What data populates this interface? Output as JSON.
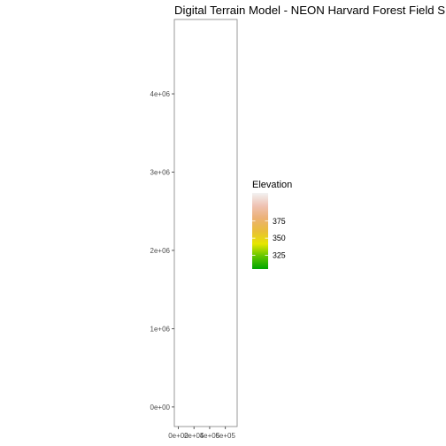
{
  "chart_data": {
    "type": "heatmap",
    "title": "Digital Terrain Model - NEON Harvard Forest Field Site",
    "xlabel": "",
    "ylabel": "",
    "x_ticks": [
      0,
      200000,
      400000,
      600000,
      800000
    ],
    "x_tick_labels": [
      "0e+00",
      "2e+05",
      "4e+05",
      "6e+05",
      "8e+05"
    ],
    "y_ticks": [
      0,
      1000000,
      2000000,
      3000000,
      4000000
    ],
    "y_tick_labels": [
      "0e+00",
      "1e+06",
      "2e+06",
      "3e+06",
      "4e+06"
    ],
    "xlim": [
      -50000,
      750000
    ],
    "ylim": [
      -250000,
      4950000
    ],
    "grid": false,
    "legend": {
      "title": "Elevation",
      "placement": "right",
      "ticks": [
        325,
        350,
        375
      ],
      "tick_labels": [
        "325",
        "350",
        "375"
      ],
      "range": [
        305,
        416
      ],
      "colors": [
        "#00A600",
        "#63C600",
        "#E6E600",
        "#E9BD3A",
        "#ECB176",
        "#EFC2B3",
        "#F2F2F2"
      ]
    }
  }
}
